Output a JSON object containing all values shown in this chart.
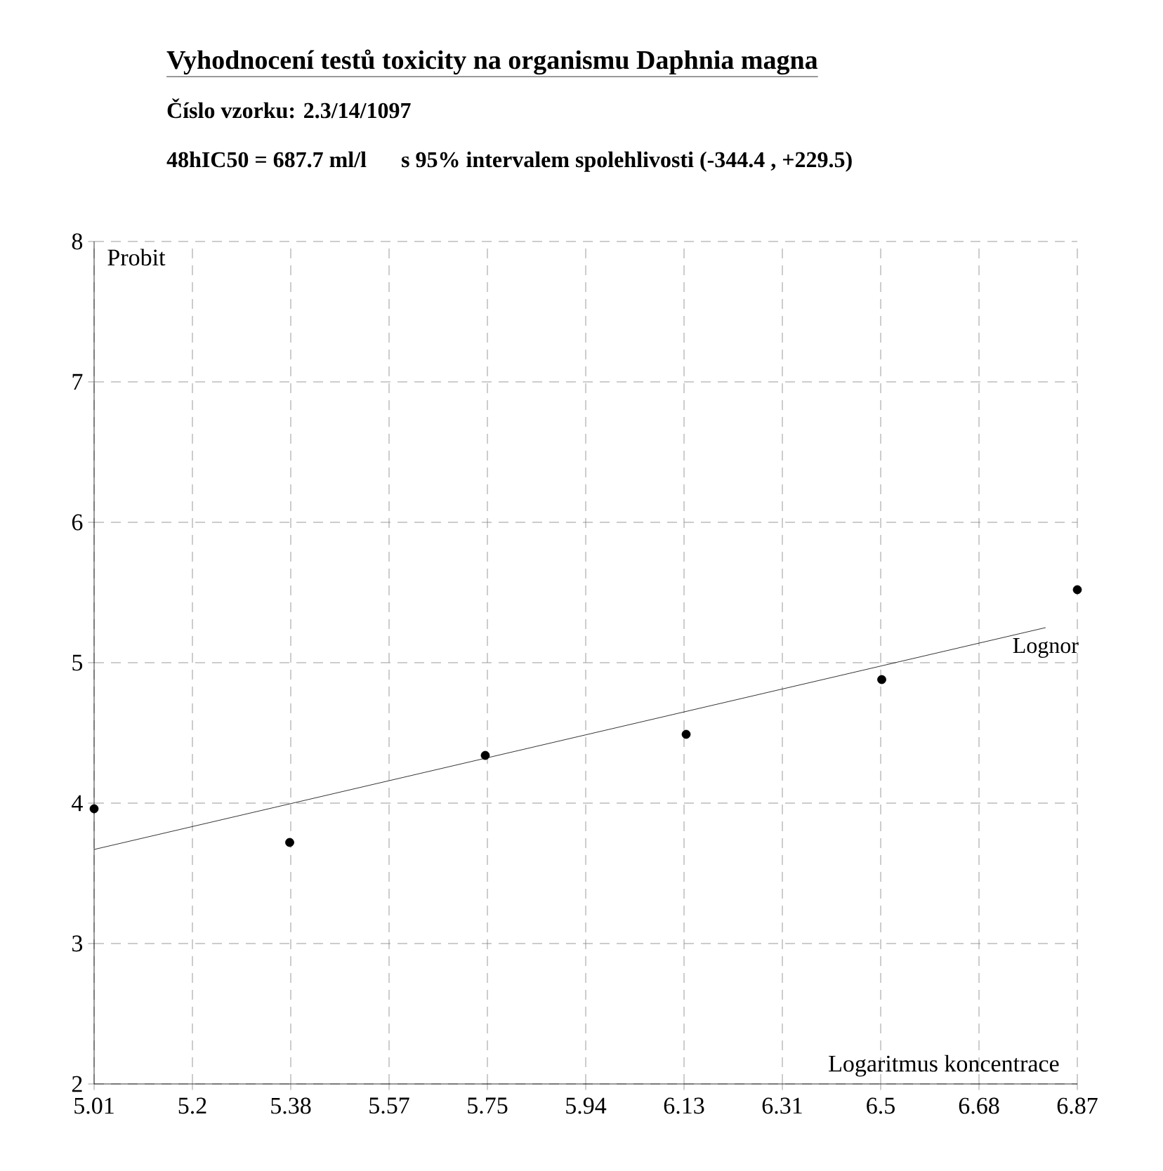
{
  "chart_data": {
    "type": "scatter",
    "title": "Vyhodnocení testů toxicity na organismu Daphnia magna",
    "subtitle": "Číslo vzorku: 2.3/14/1097",
    "annotations": [
      "48hIC50 = 687.7 ml/l",
      "s 95% intervalem spolehlivosti (-344.4 , +229.5)"
    ],
    "xlabel": "Logaritmus koncentrace",
    "ylabel": "Probit",
    "xlim": [
      5.01,
      6.87
    ],
    "xticks": [
      {
        "value": 5.01,
        "label": "5.01"
      },
      {
        "value": 5.196,
        "label": "5.2"
      },
      {
        "value": 5.382,
        "label": "5.38"
      },
      {
        "value": 5.568,
        "label": "5.57"
      },
      {
        "value": 5.754,
        "label": "5.75"
      },
      {
        "value": 5.94,
        "label": "5.94"
      },
      {
        "value": 6.126,
        "label": "6.13"
      },
      {
        "value": 6.312,
        "label": "6.31"
      },
      {
        "value": 6.498,
        "label": "6.5"
      },
      {
        "value": 6.684,
        "label": "6.68"
      },
      {
        "value": 6.87,
        "label": "6.87"
      }
    ],
    "ylim": [
      2,
      8
    ],
    "yticks": [
      2,
      3,
      4,
      5,
      6,
      7,
      8
    ],
    "grid": true,
    "legend": false,
    "series": [
      {
        "type": "scatter",
        "color": "#000000",
        "marker": "circle",
        "x": [
          5.01,
          5.38,
          5.75,
          6.13,
          6.5,
          6.87
        ],
        "values": [
          3.96,
          3.72,
          4.34,
          4.49,
          4.88,
          5.52
        ]
      },
      {
        "type": "line",
        "name": "Lognor",
        "color": "#000000",
        "marker": "none",
        "line_style": "solid",
        "x": [
          5.01,
          6.81
        ],
        "values": [
          3.67,
          5.25
        ]
      }
    ]
  }
}
